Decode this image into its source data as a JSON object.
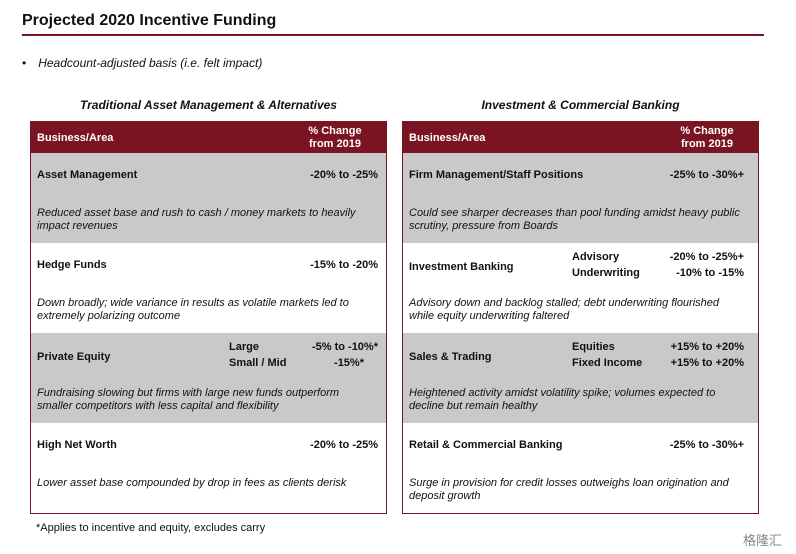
{
  "header": {
    "title": "Projected 2020 Incentive Funding",
    "bullet": "Headcount-adjusted basis (i.e. felt impact)"
  },
  "tables": [
    {
      "title": "Traditional Asset Management & Alternatives",
      "columns": [
        "Business/Area",
        "% Change from 2019"
      ],
      "rows": [
        {
          "name": "Asset Management",
          "items": [
            {
              "value": "-20% to -25%"
            }
          ],
          "note": "Reduced asset base and rush to cash / money markets to heavily impact revenues"
        },
        {
          "name": "Hedge Funds",
          "items": [
            {
              "value": "-15% to -20%"
            }
          ],
          "note": "Down broadly; wide variance in results as volatile markets led to extremely polarizing outcome"
        },
        {
          "name": "Private Equity",
          "items": [
            {
              "label": "Large",
              "value": "-5% to -10%*"
            },
            {
              "label": "Small / Mid",
              "value": "-15%*"
            }
          ],
          "note": "Fundraising slowing but firms with large new funds outperform smaller competitors with less capital and flexibility"
        },
        {
          "name": "High Net Worth",
          "items": [
            {
              "value": "-20% to -25%"
            }
          ],
          "note": "Lower asset base compounded by drop in fees as clients derisk"
        }
      ]
    },
    {
      "title": "Investment & Commercial Banking",
      "columns": [
        "Business/Area",
        "% Change from 2019"
      ],
      "rows": [
        {
          "name": "Firm Management/Staff Positions",
          "items": [
            {
              "value": "-25% to -30%+"
            }
          ],
          "note": "Could see sharper decreases than pool funding amidst heavy public scrutiny, pressure from Boards"
        },
        {
          "name": "Investment Banking",
          "items": [
            {
              "label": "Advisory",
              "value": "-20% to -25%+"
            },
            {
              "label": "Underwriting",
              "value": "-10% to -15%"
            }
          ],
          "note": "Advisory down and backlog stalled; debt underwriting flourished while equity underwriting faltered"
        },
        {
          "name": "Sales & Trading",
          "items": [
            {
              "label": "Equities",
              "value": "+15% to +20%"
            },
            {
              "label": "Fixed Income",
              "value": "+15% to +20%"
            }
          ],
          "note": "Heightened activity amidst volatility spike; volumes expected to decline but remain healthy"
        },
        {
          "name": "Retail & Commercial Banking",
          "items": [
            {
              "value": "-25% to -30%+"
            }
          ],
          "note": "Surge in provision for credit losses outweighs loan origination and deposit growth"
        }
      ]
    }
  ],
  "footnote": "*Applies to incentive and equity, excludes carry",
  "watermark": "格隆汇"
}
